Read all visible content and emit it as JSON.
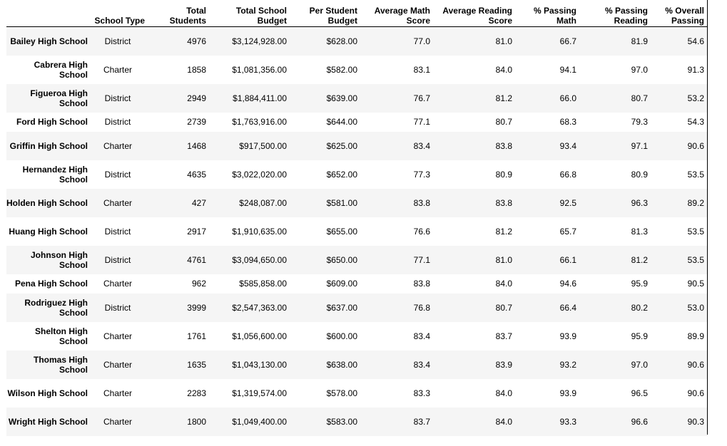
{
  "table": {
    "columns": [
      "School Type",
      "Total Students",
      "Total School Budget",
      "Per Student Budget",
      "Average Math Score",
      "Average Reading Score",
      "% Passing Math",
      "% Passing Reading",
      "% Overall Passing"
    ],
    "rows": [
      {
        "school": "Bailey High School",
        "cells": [
          "District",
          "4976",
          "$3,124,928.00",
          "$628.00",
          "77.0",
          "81.0",
          "66.7",
          "81.9",
          "54.6"
        ]
      },
      {
        "school": "Cabrera High School",
        "cells": [
          "Charter",
          "1858",
          "$1,081,356.00",
          "$582.00",
          "83.1",
          "84.0",
          "94.1",
          "97.0",
          "91.3"
        ]
      },
      {
        "school": "Figueroa High School",
        "cells": [
          "District",
          "2949",
          "$1,884,411.00",
          "$639.00",
          "76.7",
          "81.2",
          "66.0",
          "80.7",
          "53.2"
        ]
      },
      {
        "school": "Ford High School",
        "cells": [
          "District",
          "2739",
          "$1,763,916.00",
          "$644.00",
          "77.1",
          "80.7",
          "68.3",
          "79.3",
          "54.3"
        ]
      },
      {
        "school": "Griffin High School",
        "cells": [
          "Charter",
          "1468",
          "$917,500.00",
          "$625.00",
          "83.4",
          "83.8",
          "93.4",
          "97.1",
          "90.6"
        ]
      },
      {
        "school": "Hernandez High School",
        "cells": [
          "District",
          "4635",
          "$3,022,020.00",
          "$652.00",
          "77.3",
          "80.9",
          "66.8",
          "80.9",
          "53.5"
        ]
      },
      {
        "school": "Holden High School",
        "cells": [
          "Charter",
          "427",
          "$248,087.00",
          "$581.00",
          "83.8",
          "83.8",
          "92.5",
          "96.3",
          "89.2"
        ]
      },
      {
        "school": "Huang High School",
        "cells": [
          "District",
          "2917",
          "$1,910,635.00",
          "$655.00",
          "76.6",
          "81.2",
          "65.7",
          "81.3",
          "53.5"
        ]
      },
      {
        "school": "Johnson High School",
        "cells": [
          "District",
          "4761",
          "$3,094,650.00",
          "$650.00",
          "77.1",
          "81.0",
          "66.1",
          "81.2",
          "53.5"
        ]
      },
      {
        "school": "Pena High School",
        "cells": [
          "Charter",
          "962",
          "$585,858.00",
          "$609.00",
          "83.8",
          "84.0",
          "94.6",
          "95.9",
          "90.5"
        ]
      },
      {
        "school": "Rodriguez High School",
        "cells": [
          "District",
          "3999",
          "$2,547,363.00",
          "$637.00",
          "76.8",
          "80.7",
          "66.4",
          "80.2",
          "53.0"
        ]
      },
      {
        "school": "Shelton High School",
        "cells": [
          "Charter",
          "1761",
          "$1,056,600.00",
          "$600.00",
          "83.4",
          "83.7",
          "93.9",
          "95.9",
          "89.9"
        ]
      },
      {
        "school": "Thomas High School",
        "cells": [
          "Charter",
          "1635",
          "$1,043,130.00",
          "$638.00",
          "83.4",
          "83.9",
          "93.2",
          "97.0",
          "90.6"
        ]
      },
      {
        "school": "Wilson High School",
        "cells": [
          "Charter",
          "2283",
          "$1,319,574.00",
          "$578.00",
          "83.3",
          "84.0",
          "93.9",
          "96.5",
          "90.6"
        ]
      },
      {
        "school": "Wright High School",
        "cells": [
          "Charter",
          "1800",
          "$1,049,400.00",
          "$583.00",
          "83.7",
          "84.0",
          "93.3",
          "96.6",
          "90.3"
        ]
      }
    ]
  }
}
